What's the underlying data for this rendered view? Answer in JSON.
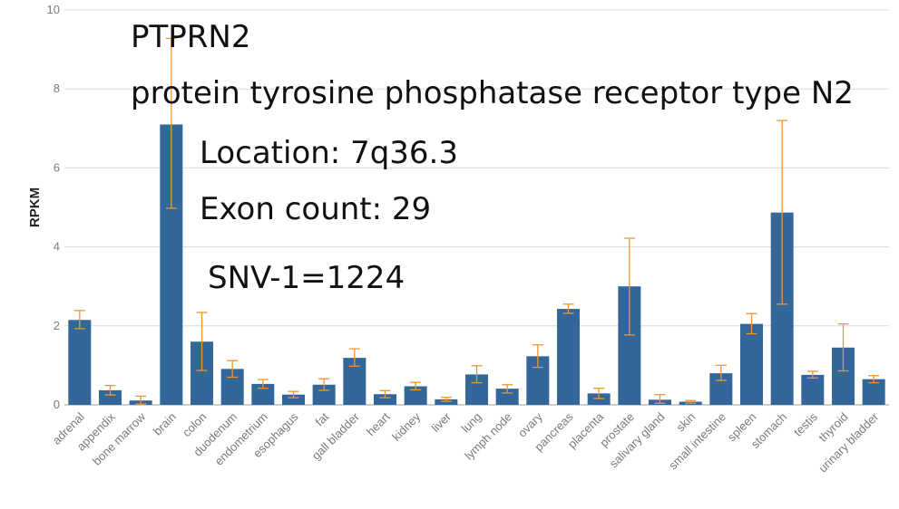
{
  "chart_data": {
    "type": "bar",
    "ylabel": "RPKM",
    "xlabel": "",
    "ylim": [
      0,
      10
    ],
    "yticks": [
      0,
      2,
      4,
      6,
      8,
      10
    ],
    "grid": true,
    "bar_color": "#336699",
    "error_color": "#f0962e",
    "categories": [
      "adrenal",
      "appendix",
      "bone marrow",
      "brain",
      "colon",
      "duodenum",
      "endometrium",
      "esophagus",
      "fat",
      "gall bladder",
      "heart",
      "kidney",
      "liver",
      "lung",
      "lymph node",
      "ovary",
      "pancreas",
      "placenta",
      "prostate",
      "salivary gland",
      "skin",
      "small intestine",
      "spleen",
      "stomach",
      "testis",
      "thyroid",
      "urinary bladder"
    ],
    "values": [
      2.15,
      0.37,
      0.11,
      7.1,
      1.6,
      0.91,
      0.53,
      0.26,
      0.51,
      1.19,
      0.27,
      0.47,
      0.14,
      0.77,
      0.41,
      1.23,
      2.43,
      0.29,
      3.0,
      0.13,
      0.08,
      0.8,
      2.05,
      4.87,
      0.76,
      1.45,
      0.65
    ],
    "error_low": [
      1.93,
      0.25,
      0.02,
      4.98,
      0.87,
      0.7,
      0.42,
      0.18,
      0.37,
      0.98,
      0.18,
      0.38,
      0.09,
      0.56,
      0.3,
      0.95,
      2.32,
      0.16,
      1.77,
      0.04,
      0.04,
      0.62,
      1.8,
      2.55,
      0.68,
      0.86,
      0.56
    ],
    "error_high": [
      2.39,
      0.49,
      0.22,
      9.28,
      2.34,
      1.12,
      0.64,
      0.34,
      0.66,
      1.42,
      0.36,
      0.57,
      0.19,
      0.99,
      0.51,
      1.52,
      2.55,
      0.42,
      4.22,
      0.26,
      0.11,
      1.0,
      2.31,
      7.2,
      0.85,
      2.05,
      0.74
    ]
  },
  "overlay": {
    "gene": "PTPRN2",
    "name": "protein tyrosine phosphatase receptor type N2",
    "location": "Location: 7q36.3",
    "exon_count": "Exon count: 29",
    "snv": "SNV-1=1224"
  }
}
